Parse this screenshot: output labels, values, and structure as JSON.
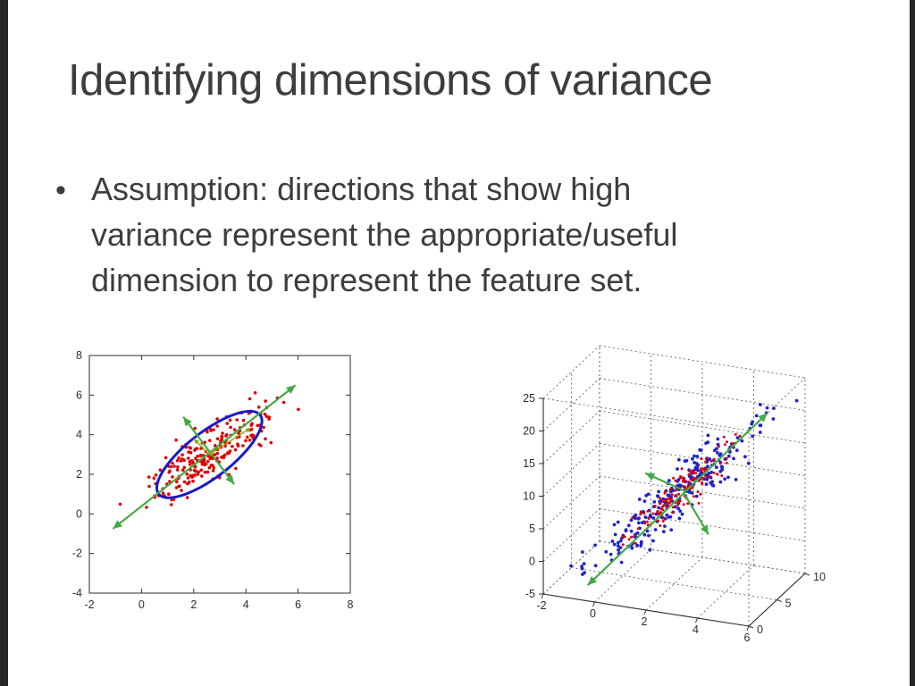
{
  "slide": {
    "title": "Identifying dimensions of variance",
    "bullet_glyph": "•",
    "bullet_lines": [
      "Assumption: directions that show high",
      "variance represent the appropriate/useful",
      "dimension to represent the feature set."
    ]
  },
  "colors": {
    "text": "#3d3d3d",
    "axis": "#2e2e2e",
    "grid": "#555555",
    "scatter_red": "#e00000",
    "scatter_blue": "#2222cc",
    "ellipse_blue": "#1a1acc",
    "arrow_green": "#44aa44",
    "arrow_olive": "#a0a000",
    "edge_bar": "#262626"
  },
  "chart_data": [
    {
      "type": "scatter",
      "title": "",
      "xlabel": "",
      "ylabel": "",
      "description": "2D red point cloud with PCA covariance ellipse and principal-axis arrows",
      "xlim": [
        -2,
        8
      ],
      "ylim": [
        -4,
        8
      ],
      "xticks": [
        -2,
        0,
        2,
        4,
        6,
        8
      ],
      "yticks": [
        -4,
        -2,
        0,
        2,
        4,
        6,
        8
      ],
      "grid": false,
      "n_points": 230,
      "cluster": {
        "center": [
          2.6,
          3.0
        ],
        "angle_deg": 45,
        "sd_major": 1.6,
        "sd_minor": 0.5
      },
      "ellipse": {
        "center": [
          2.6,
          3.0
        ],
        "semi_major": 2.8,
        "semi_minor": 1.0,
        "angle_deg": 48
      },
      "arrows": [
        {
          "from": [
            -1.1,
            -0.75
          ],
          "to": [
            5.9,
            6.5
          ],
          "double": true,
          "color": "green"
        },
        {
          "from": [
            3.55,
            1.5
          ],
          "to": [
            1.6,
            4.9
          ],
          "double": true,
          "color": "green"
        },
        {
          "from": [
            2.6,
            3.0
          ],
          "to": [
            4.2,
            4.35
          ],
          "double": false,
          "color": "olive"
        },
        {
          "from": [
            2.6,
            3.0
          ],
          "to": [
            2.0,
            3.8
          ],
          "double": false,
          "color": "olive"
        }
      ]
    },
    {
      "type": "scatter3d",
      "title": "",
      "description": "3D blue/red point cloud in dashed axes box with principal-axis arrows",
      "xlim": [
        -2,
        6
      ],
      "ylim": [
        0,
        10
      ],
      "zlim": [
        -5,
        25
      ],
      "xticks": [
        -2,
        0,
        2,
        4,
        6
      ],
      "yticks": [
        0,
        5,
        10
      ],
      "zticks": [
        -5,
        0,
        5,
        10,
        15,
        20,
        25
      ],
      "grid": true,
      "n_blue": 260,
      "n_red": 140,
      "cluster": {
        "center": [
          2.2,
          5,
          9
        ],
        "dir": [
          1.3,
          1.5,
          5.5
        ],
        "noise": [
          0.4,
          0.7,
          1.2
        ]
      },
      "arrows": [
        {
          "from": [
            -0.6,
            1.5,
            -4
          ],
          "to": [
            5.3,
            6.5,
            22
          ],
          "double": true
        },
        {
          "from": [
            2.4,
            5,
            9.5
          ],
          "to": [
            0.7,
            5.8,
            10.5
          ],
          "double": false
        },
        {
          "from": [
            2.4,
            5,
            9
          ],
          "to": [
            3.6,
            3.8,
            4.5
          ],
          "double": false
        }
      ]
    }
  ]
}
